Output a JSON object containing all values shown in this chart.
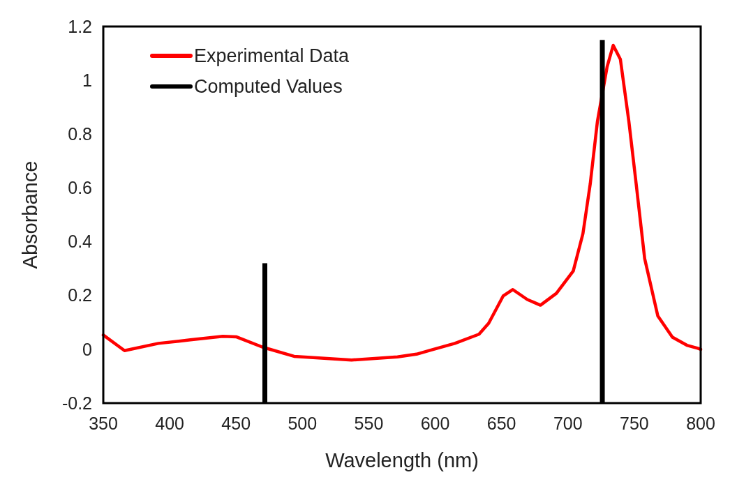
{
  "chart_data": {
    "type": "line",
    "xlabel": "Wavelength (nm)",
    "ylabel": "Absorbance",
    "xlim": [
      350,
      800
    ],
    "ylim": [
      -0.2,
      1.2
    ],
    "xticks": [
      350,
      400,
      450,
      500,
      550,
      600,
      650,
      700,
      750,
      800
    ],
    "yticks": [
      -0.2,
      0,
      0.2,
      0.4,
      0.6,
      0.8,
      1,
      1.2
    ],
    "grid": false,
    "legend": "top left",
    "marker": "none",
    "line_style": "solid",
    "series": [
      {
        "name": "Experimental Data",
        "color": "#ff0000",
        "x": [
          350,
          366,
          391.5,
          415.6,
          440,
          450.4,
          470,
          493.7,
          537,
          571.6,
          586,
          596,
          614.8,
          633,
          640.3,
          651.2,
          658.5,
          669.4,
          679.3,
          691.3,
          704,
          711.3,
          716.8,
          722.2,
          729.5,
          734.1,
          739.5,
          745.9,
          751.4,
          757.8,
          767.7,
          778.7,
          789.6,
          797.8,
          800
        ],
        "values": [
          0.053,
          -0.005,
          0.022,
          0.035,
          0.048,
          0.046,
          0.008,
          -0.026,
          -0.04,
          -0.028,
          -0.018,
          -0.004,
          0.022,
          0.056,
          0.097,
          0.198,
          0.222,
          0.185,
          0.164,
          0.208,
          0.291,
          0.43,
          0.615,
          0.847,
          1.05,
          1.13,
          1.078,
          0.847,
          0.615,
          0.337,
          0.124,
          0.045,
          0.015,
          0.004,
          0
        ]
      },
      {
        "name": "Computed Values",
        "type": "bar",
        "color": "#000000",
        "x": [
          471.7,
          725.9
        ],
        "base": [
          -0.2,
          -0.2
        ],
        "values": [
          0.52,
          1.35
        ]
      }
    ]
  }
}
